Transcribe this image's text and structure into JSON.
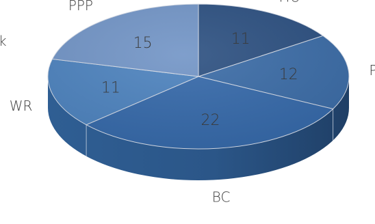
{
  "chart_data": {
    "type": "pie",
    "style": "3d",
    "title": "",
    "categories": [
      "MU",
      "PM",
      "BC",
      "WR",
      "PPP"
    ],
    "values": [
      11,
      12,
      22,
      11,
      15
    ],
    "colors": {
      "MU": "#2b4f80",
      "PM": "#3a6ba6",
      "BC": "#3468a9",
      "WR": "#4c82be",
      "PPP": "#7194c6"
    },
    "legend": "none",
    "partial_text": "k"
  }
}
